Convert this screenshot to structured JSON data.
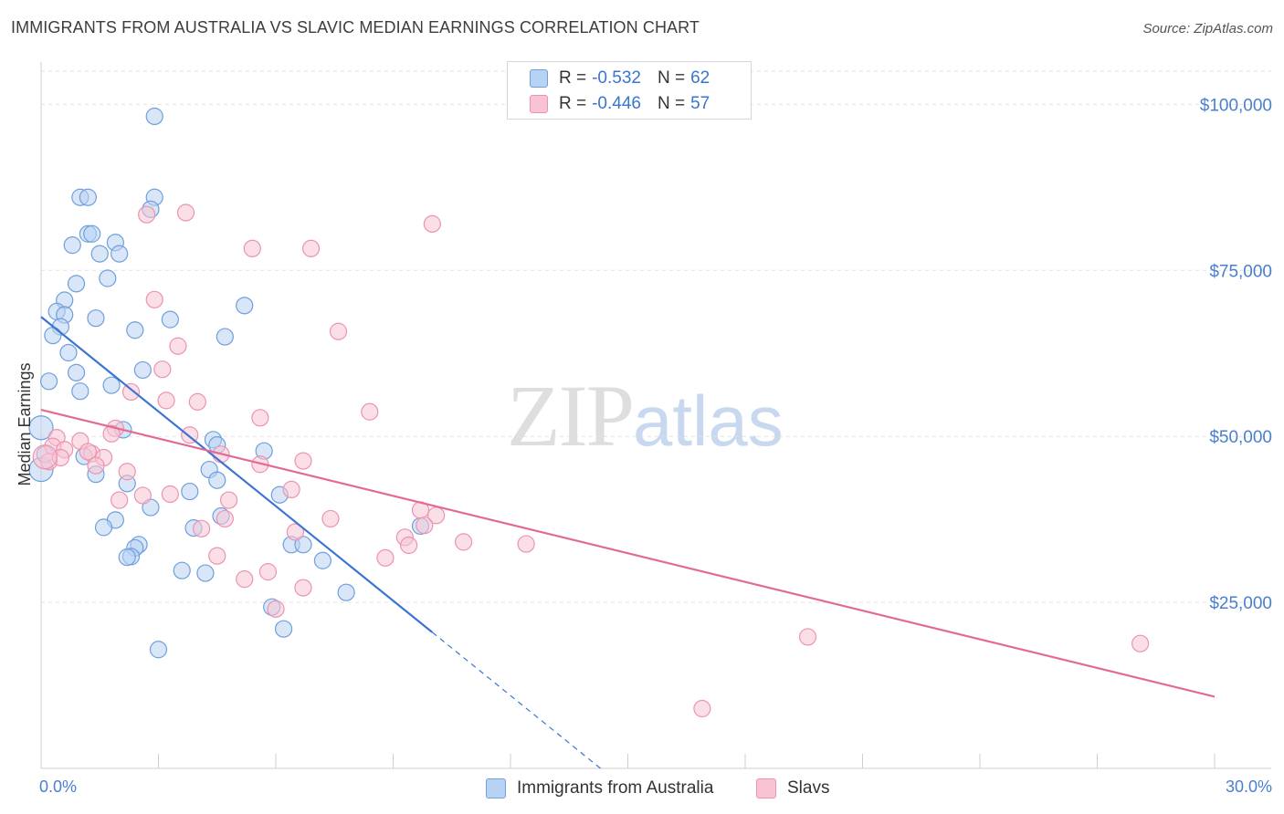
{
  "header": {
    "title": "IMMIGRANTS FROM AUSTRALIA VS SLAVIC MEDIAN EARNINGS CORRELATION CHART",
    "source": "Source: ZipAtlas.com"
  },
  "legend": {
    "rows": [
      {
        "r_label": "R =",
        "r_value": "-0.532",
        "n_label": "N =",
        "n_value": "62"
      },
      {
        "r_label": "R =",
        "r_value": "-0.446",
        "n_label": "N =",
        "n_value": "57"
      }
    ],
    "series": [
      "Immigrants from Australia",
      "Slavs"
    ]
  },
  "watermark": {
    "zip": "ZIP",
    "atlas": "atlas"
  },
  "colors": {
    "blue_fill": "#b8d2f3",
    "blue_stroke": "#6f9fdc",
    "blue_line": "#3b74d4",
    "pink_fill": "#f8c4d4",
    "pink_stroke": "#ec93b0",
    "pink_line": "#e36a94",
    "tick_text": "#4a7fd0"
  },
  "chart_data": {
    "type": "scatter",
    "title": "IMMIGRANTS FROM AUSTRALIA VS SLAVIC MEDIAN EARNINGS CORRELATION CHART",
    "xlabel": "",
    "ylabel": "Median Earnings",
    "xlim": [
      0,
      30
    ],
    "ylim": [
      0,
      105000
    ],
    "x_tick_labels": [
      "0.0%",
      "30.0%"
    ],
    "y_ticks": [
      25000,
      50000,
      75000,
      100000
    ],
    "y_tick_labels": [
      "$25,000",
      "$50,000",
      "$75,000",
      "$100,000"
    ],
    "grid": true,
    "legend_position": "top-center",
    "series": [
      {
        "name": "Immigrants from Australia",
        "color": "blue",
        "r": -0.532,
        "n": 62,
        "trend": {
          "x0": 0,
          "y0": 68000,
          "x1": 10,
          "y1": 20500,
          "dashed_to_x": 14.3,
          "dashed_to_y": 0
        },
        "points": [
          [
            2.9,
            98200
          ],
          [
            1.0,
            86000
          ],
          [
            1.2,
            86000
          ],
          [
            2.9,
            86000
          ],
          [
            2.8,
            84200
          ],
          [
            1.2,
            80500
          ],
          [
            1.3,
            80500
          ],
          [
            1.9,
            79200
          ],
          [
            0.8,
            78800
          ],
          [
            1.5,
            77500
          ],
          [
            2.0,
            77500
          ],
          [
            1.7,
            73800
          ],
          [
            0.9,
            73000
          ],
          [
            0.6,
            70500
          ],
          [
            5.2,
            69700
          ],
          [
            0.4,
            68800
          ],
          [
            0.6,
            68300
          ],
          [
            1.4,
            67800
          ],
          [
            3.3,
            67600
          ],
          [
            0.5,
            66500
          ],
          [
            2.4,
            66000
          ],
          [
            0.3,
            65200
          ],
          [
            4.7,
            65000
          ],
          [
            0.7,
            62600
          ],
          [
            0.9,
            59600
          ],
          [
            2.6,
            60000
          ],
          [
            0.2,
            58300
          ],
          [
            1.8,
            57700
          ],
          [
            1.0,
            56800
          ],
          [
            0.0,
            51300
          ],
          [
            2.1,
            51000
          ],
          [
            4.4,
            49500
          ],
          [
            4.5,
            48700
          ],
          [
            5.7,
            47800
          ],
          [
            0.0,
            45000
          ],
          [
            4.3,
            45000
          ],
          [
            1.4,
            44300
          ],
          [
            4.5,
            43400
          ],
          [
            2.2,
            42900
          ],
          [
            3.8,
            41700
          ],
          [
            2.8,
            39300
          ],
          [
            4.6,
            38000
          ],
          [
            1.9,
            37400
          ],
          [
            1.6,
            36300
          ],
          [
            3.9,
            36200
          ],
          [
            9.7,
            36500
          ],
          [
            2.5,
            33700
          ],
          [
            2.4,
            33200
          ],
          [
            6.4,
            33700
          ],
          [
            6.7,
            33700
          ],
          [
            2.3,
            31900
          ],
          [
            2.2,
            31800
          ],
          [
            7.2,
            31300
          ],
          [
            3.6,
            29800
          ],
          [
            4.2,
            29400
          ],
          [
            7.8,
            26500
          ],
          [
            5.9,
            24300
          ],
          [
            6.2,
            21000
          ],
          [
            3.0,
            17900
          ],
          [
            6.1,
            41200
          ],
          [
            0.1,
            47300
          ],
          [
            1.1,
            47000
          ]
        ]
      },
      {
        "name": "Slavs",
        "color": "pink",
        "r": -0.446,
        "n": 57,
        "trend": {
          "x0": 0,
          "y0": 54000,
          "x1": 30,
          "y1": 10800
        },
        "points": [
          [
            3.7,
            83700
          ],
          [
            2.7,
            83400
          ],
          [
            10.0,
            82000
          ],
          [
            5.4,
            78300
          ],
          [
            6.9,
            78300
          ],
          [
            2.9,
            70600
          ],
          [
            7.6,
            65800
          ],
          [
            3.5,
            63600
          ],
          [
            3.1,
            60100
          ],
          [
            2.3,
            56700
          ],
          [
            3.2,
            55400
          ],
          [
            4.0,
            55200
          ],
          [
            8.4,
            53700
          ],
          [
            5.6,
            52800
          ],
          [
            1.9,
            51200
          ],
          [
            3.8,
            50200
          ],
          [
            0.4,
            49800
          ],
          [
            1.0,
            49300
          ],
          [
            1.8,
            50400
          ],
          [
            0.3,
            48500
          ],
          [
            0.6,
            48000
          ],
          [
            1.3,
            47400
          ],
          [
            1.2,
            47700
          ],
          [
            0.2,
            46200
          ],
          [
            0.5,
            46800
          ],
          [
            4.6,
            47300
          ],
          [
            1.6,
            46800
          ],
          [
            6.7,
            46300
          ],
          [
            5.6,
            45800
          ],
          [
            1.4,
            45600
          ],
          [
            2.2,
            44700
          ],
          [
            2.6,
            41100
          ],
          [
            3.3,
            41300
          ],
          [
            6.4,
            42000
          ],
          [
            4.8,
            40400
          ],
          [
            2.0,
            40400
          ],
          [
            9.7,
            38900
          ],
          [
            10.1,
            38100
          ],
          [
            7.4,
            37600
          ],
          [
            4.7,
            37600
          ],
          [
            4.1,
            36100
          ],
          [
            6.5,
            35600
          ],
          [
            9.8,
            36600
          ],
          [
            9.3,
            34800
          ],
          [
            9.4,
            33600
          ],
          [
            10.8,
            34100
          ],
          [
            12.4,
            33800
          ],
          [
            4.5,
            32000
          ],
          [
            8.8,
            31700
          ],
          [
            5.8,
            29600
          ],
          [
            5.2,
            28500
          ],
          [
            6.7,
            27200
          ],
          [
            6.0,
            24000
          ],
          [
            19.6,
            19800
          ],
          [
            28.1,
            18800
          ],
          [
            16.9,
            9000
          ],
          [
            0.1,
            46900
          ]
        ]
      }
    ]
  }
}
